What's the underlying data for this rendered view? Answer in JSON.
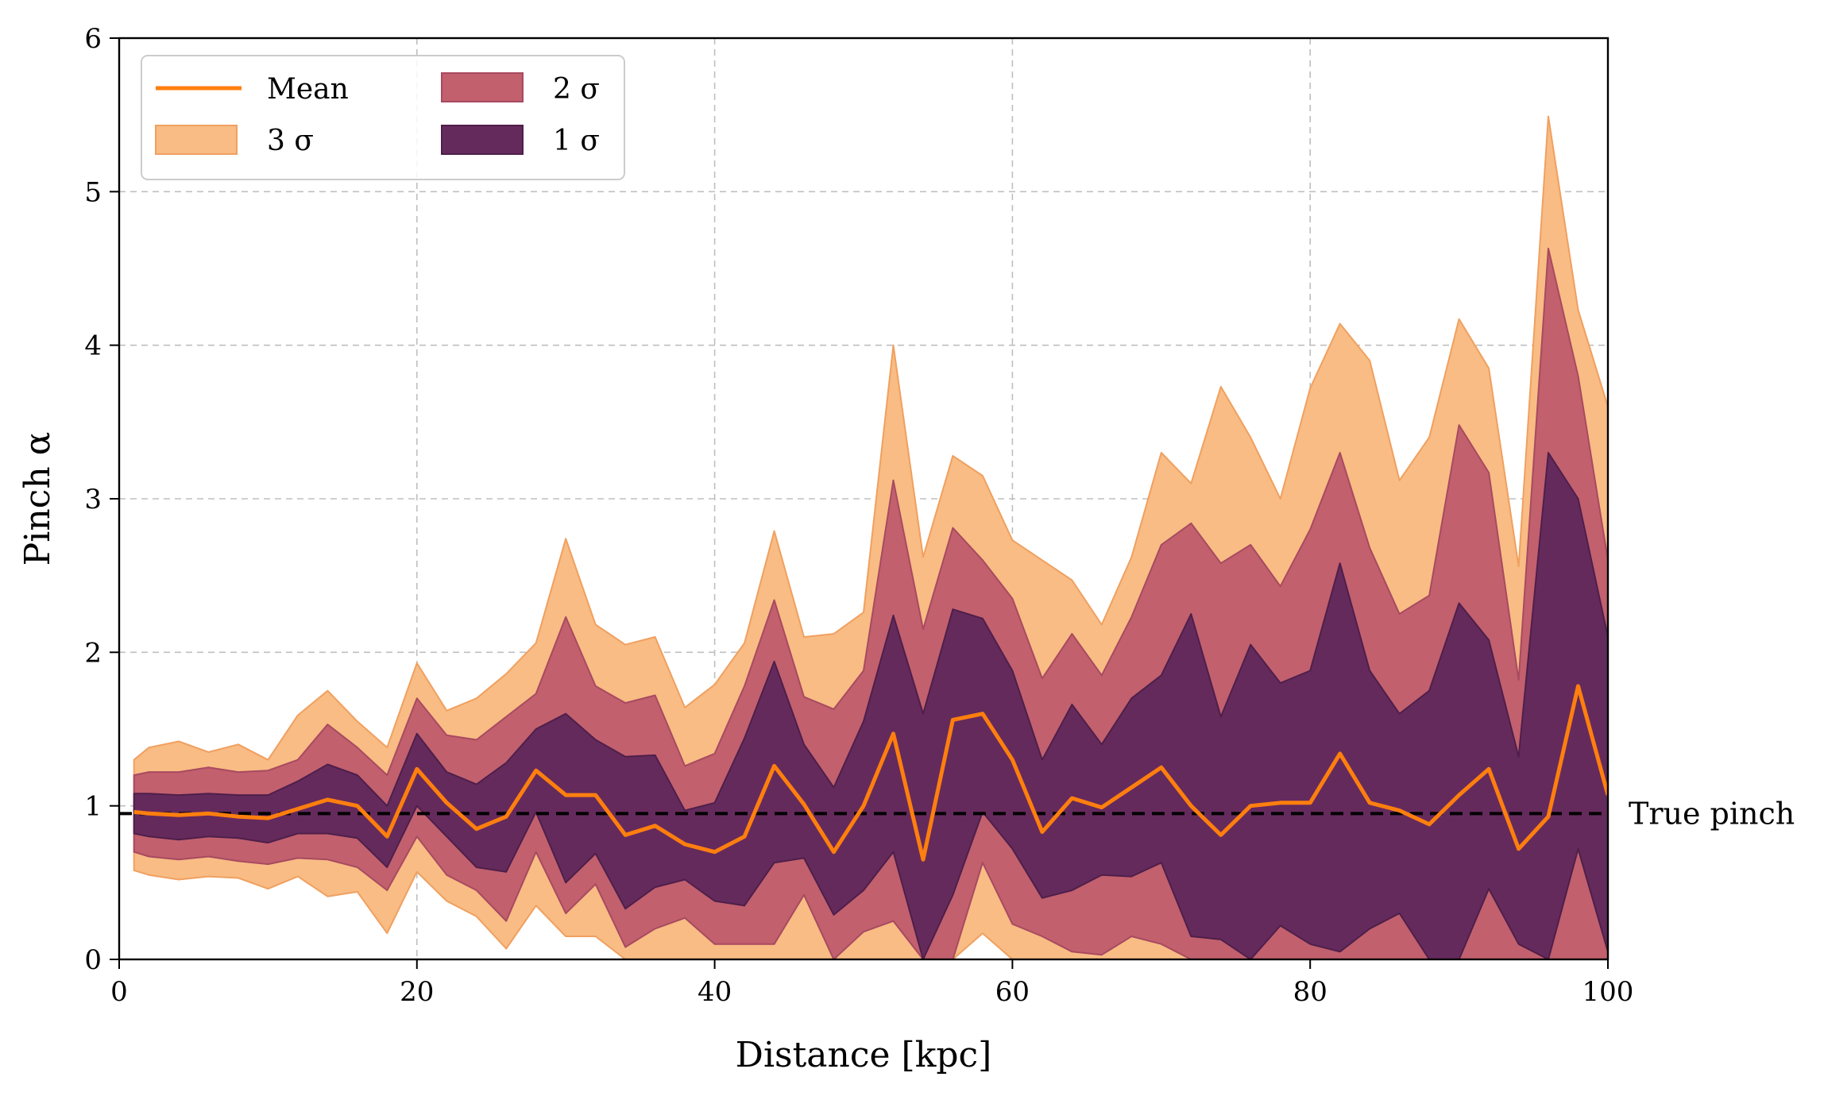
{
  "chart_data": {
    "type": "area",
    "xlabel": "Distance [kpc]",
    "ylabel": "Pinch α",
    "xlim": [
      0,
      100
    ],
    "ylim": [
      0,
      6
    ],
    "xticks": [
      "0",
      "20",
      "40",
      "60",
      "80",
      "100"
    ],
    "yticks": [
      "0",
      "1",
      "2",
      "3",
      "4",
      "5",
      "6"
    ],
    "grid": true,
    "legend_position": "top-left",
    "legend": {
      "mean": "Mean",
      "sigma3": "3 σ",
      "sigma2": "2 σ",
      "sigma1": "1 σ"
    },
    "colors": {
      "mean": "#ff7f0e",
      "sigma3": "#f8bc84",
      "sigma3_edge": "#f0a060",
      "sigma2": "#c2606e",
      "sigma2_edge": "#a84a60",
      "sigma1": "#652a5c",
      "sigma1_edge": "#4e1f4a",
      "true_line": "#000000"
    },
    "true_pinch": {
      "label": "True pinch",
      "value": 0.95
    },
    "x": [
      1,
      2,
      4,
      6,
      8,
      10,
      12,
      14,
      16,
      18,
      20,
      22,
      24,
      26,
      28,
      30,
      32,
      34,
      36,
      38,
      40,
      42,
      44,
      46,
      48,
      50,
      52,
      54,
      56,
      58,
      60,
      62,
      64,
      66,
      68,
      70,
      72,
      74,
      76,
      78,
      80,
      82,
      84,
      86,
      88,
      90,
      92,
      94,
      96,
      98,
      100
    ],
    "mean": [
      0.96,
      0.95,
      0.94,
      0.95,
      0.93,
      0.92,
      0.98,
      1.04,
      1.0,
      0.8,
      1.24,
      1.02,
      0.85,
      0.93,
      1.23,
      1.07,
      1.07,
      0.81,
      0.87,
      0.75,
      0.7,
      0.8,
      1.26,
      1.01,
      0.7,
      1.0,
      1.47,
      0.65,
      1.56,
      1.6,
      1.3,
      0.83,
      1.05,
      0.99,
      1.12,
      1.25,
      1.0,
      0.81,
      1.0,
      1.02,
      1.02,
      1.34,
      1.02,
      0.97,
      0.88,
      1.07,
      1.24,
      0.72,
      0.93,
      1.78,
      1.07
    ],
    "sigma1_upper": [
      1.08,
      1.08,
      1.07,
      1.08,
      1.07,
      1.07,
      1.16,
      1.27,
      1.2,
      1.0,
      1.47,
      1.22,
      1.14,
      1.28,
      1.5,
      1.6,
      1.43,
      1.32,
      1.33,
      0.97,
      1.02,
      1.44,
      1.94,
      1.4,
      1.12,
      1.55,
      2.24,
      1.6,
      2.28,
      2.22,
      1.88,
      1.3,
      1.66,
      1.4,
      1.7,
      1.85,
      2.25,
      1.58,
      2.05,
      1.8,
      1.88,
      2.58,
      1.88,
      1.6,
      1.75,
      2.32,
      2.08,
      1.32,
      3.3,
      3.0,
      2.1
    ],
    "sigma1_lower": [
      0.82,
      0.8,
      0.78,
      0.8,
      0.79,
      0.76,
      0.82,
      0.82,
      0.79,
      0.6,
      1.0,
      0.8,
      0.6,
      0.57,
      0.96,
      0.5,
      0.69,
      0.33,
      0.47,
      0.52,
      0.38,
      0.35,
      0.63,
      0.66,
      0.29,
      0.45,
      0.7,
      0.0,
      0.42,
      0.96,
      0.72,
      0.4,
      0.45,
      0.55,
      0.54,
      0.63,
      0.15,
      0.13,
      0.0,
      0.22,
      0.1,
      0.05,
      0.2,
      0.3,
      0.0,
      0.0,
      0.46,
      0.1,
      0.0,
      0.72,
      0.05
    ],
    "sigma2_upper": [
      1.2,
      1.22,
      1.22,
      1.25,
      1.22,
      1.23,
      1.3,
      1.53,
      1.38,
      1.2,
      1.7,
      1.46,
      1.43,
      1.58,
      1.73,
      2.23,
      1.78,
      1.67,
      1.72,
      1.26,
      1.34,
      1.78,
      2.34,
      1.71,
      1.63,
      1.88,
      3.12,
      2.15,
      2.81,
      2.6,
      2.35,
      1.83,
      2.12,
      1.85,
      2.23,
      2.7,
      2.84,
      2.58,
      2.7,
      2.43,
      2.8,
      3.3,
      2.68,
      2.25,
      2.37,
      3.48,
      3.17,
      1.82,
      4.63,
      3.8,
      2.6
    ],
    "sigma2_lower": [
      0.7,
      0.67,
      0.65,
      0.67,
      0.64,
      0.62,
      0.66,
      0.65,
      0.6,
      0.45,
      0.8,
      0.55,
      0.45,
      0.25,
      0.7,
      0.3,
      0.49,
      0.08,
      0.2,
      0.27,
      0.1,
      0.1,
      0.1,
      0.42,
      0.0,
      0.18,
      0.25,
      0.0,
      0.0,
      0.63,
      0.23,
      0.15,
      0.05,
      0.03,
      0.15,
      0.1,
      0.0,
      0.0,
      0.0,
      0.0,
      0.0,
      0.0,
      0.0,
      0.0,
      0.0,
      0.0,
      0.0,
      0.0,
      0.0,
      0.0,
      0.0
    ],
    "sigma3_upper": [
      1.3,
      1.38,
      1.42,
      1.35,
      1.4,
      1.3,
      1.59,
      1.75,
      1.55,
      1.38,
      1.93,
      1.62,
      1.7,
      1.86,
      2.06,
      2.74,
      2.18,
      2.05,
      2.1,
      1.64,
      1.79,
      2.06,
      2.79,
      2.1,
      2.12,
      2.26,
      4.0,
      2.62,
      3.28,
      3.15,
      2.73,
      2.6,
      2.47,
      2.18,
      2.62,
      3.3,
      3.1,
      3.73,
      3.4,
      3.0,
      3.72,
      4.14,
      3.9,
      3.12,
      3.4,
      4.17,
      3.85,
      2.56,
      5.49,
      4.23,
      3.6
    ],
    "sigma3_lower": [
      0.58,
      0.55,
      0.52,
      0.54,
      0.53,
      0.46,
      0.54,
      0.41,
      0.44,
      0.17,
      0.57,
      0.38,
      0.28,
      0.07,
      0.35,
      0.15,
      0.15,
      0.0,
      0.0,
      0.0,
      0.0,
      0.0,
      0.0,
      0.0,
      0.0,
      0.0,
      0.0,
      0.0,
      0.0,
      0.17,
      0.0,
      0.0,
      0.0,
      0.0,
      0.0,
      0.0,
      0.0,
      0.0,
      0.0,
      0.0,
      0.0,
      0.0,
      0.0,
      0.0,
      0.0,
      0.0,
      0.0,
      0.0,
      0.0,
      0.0,
      0.0
    ]
  }
}
